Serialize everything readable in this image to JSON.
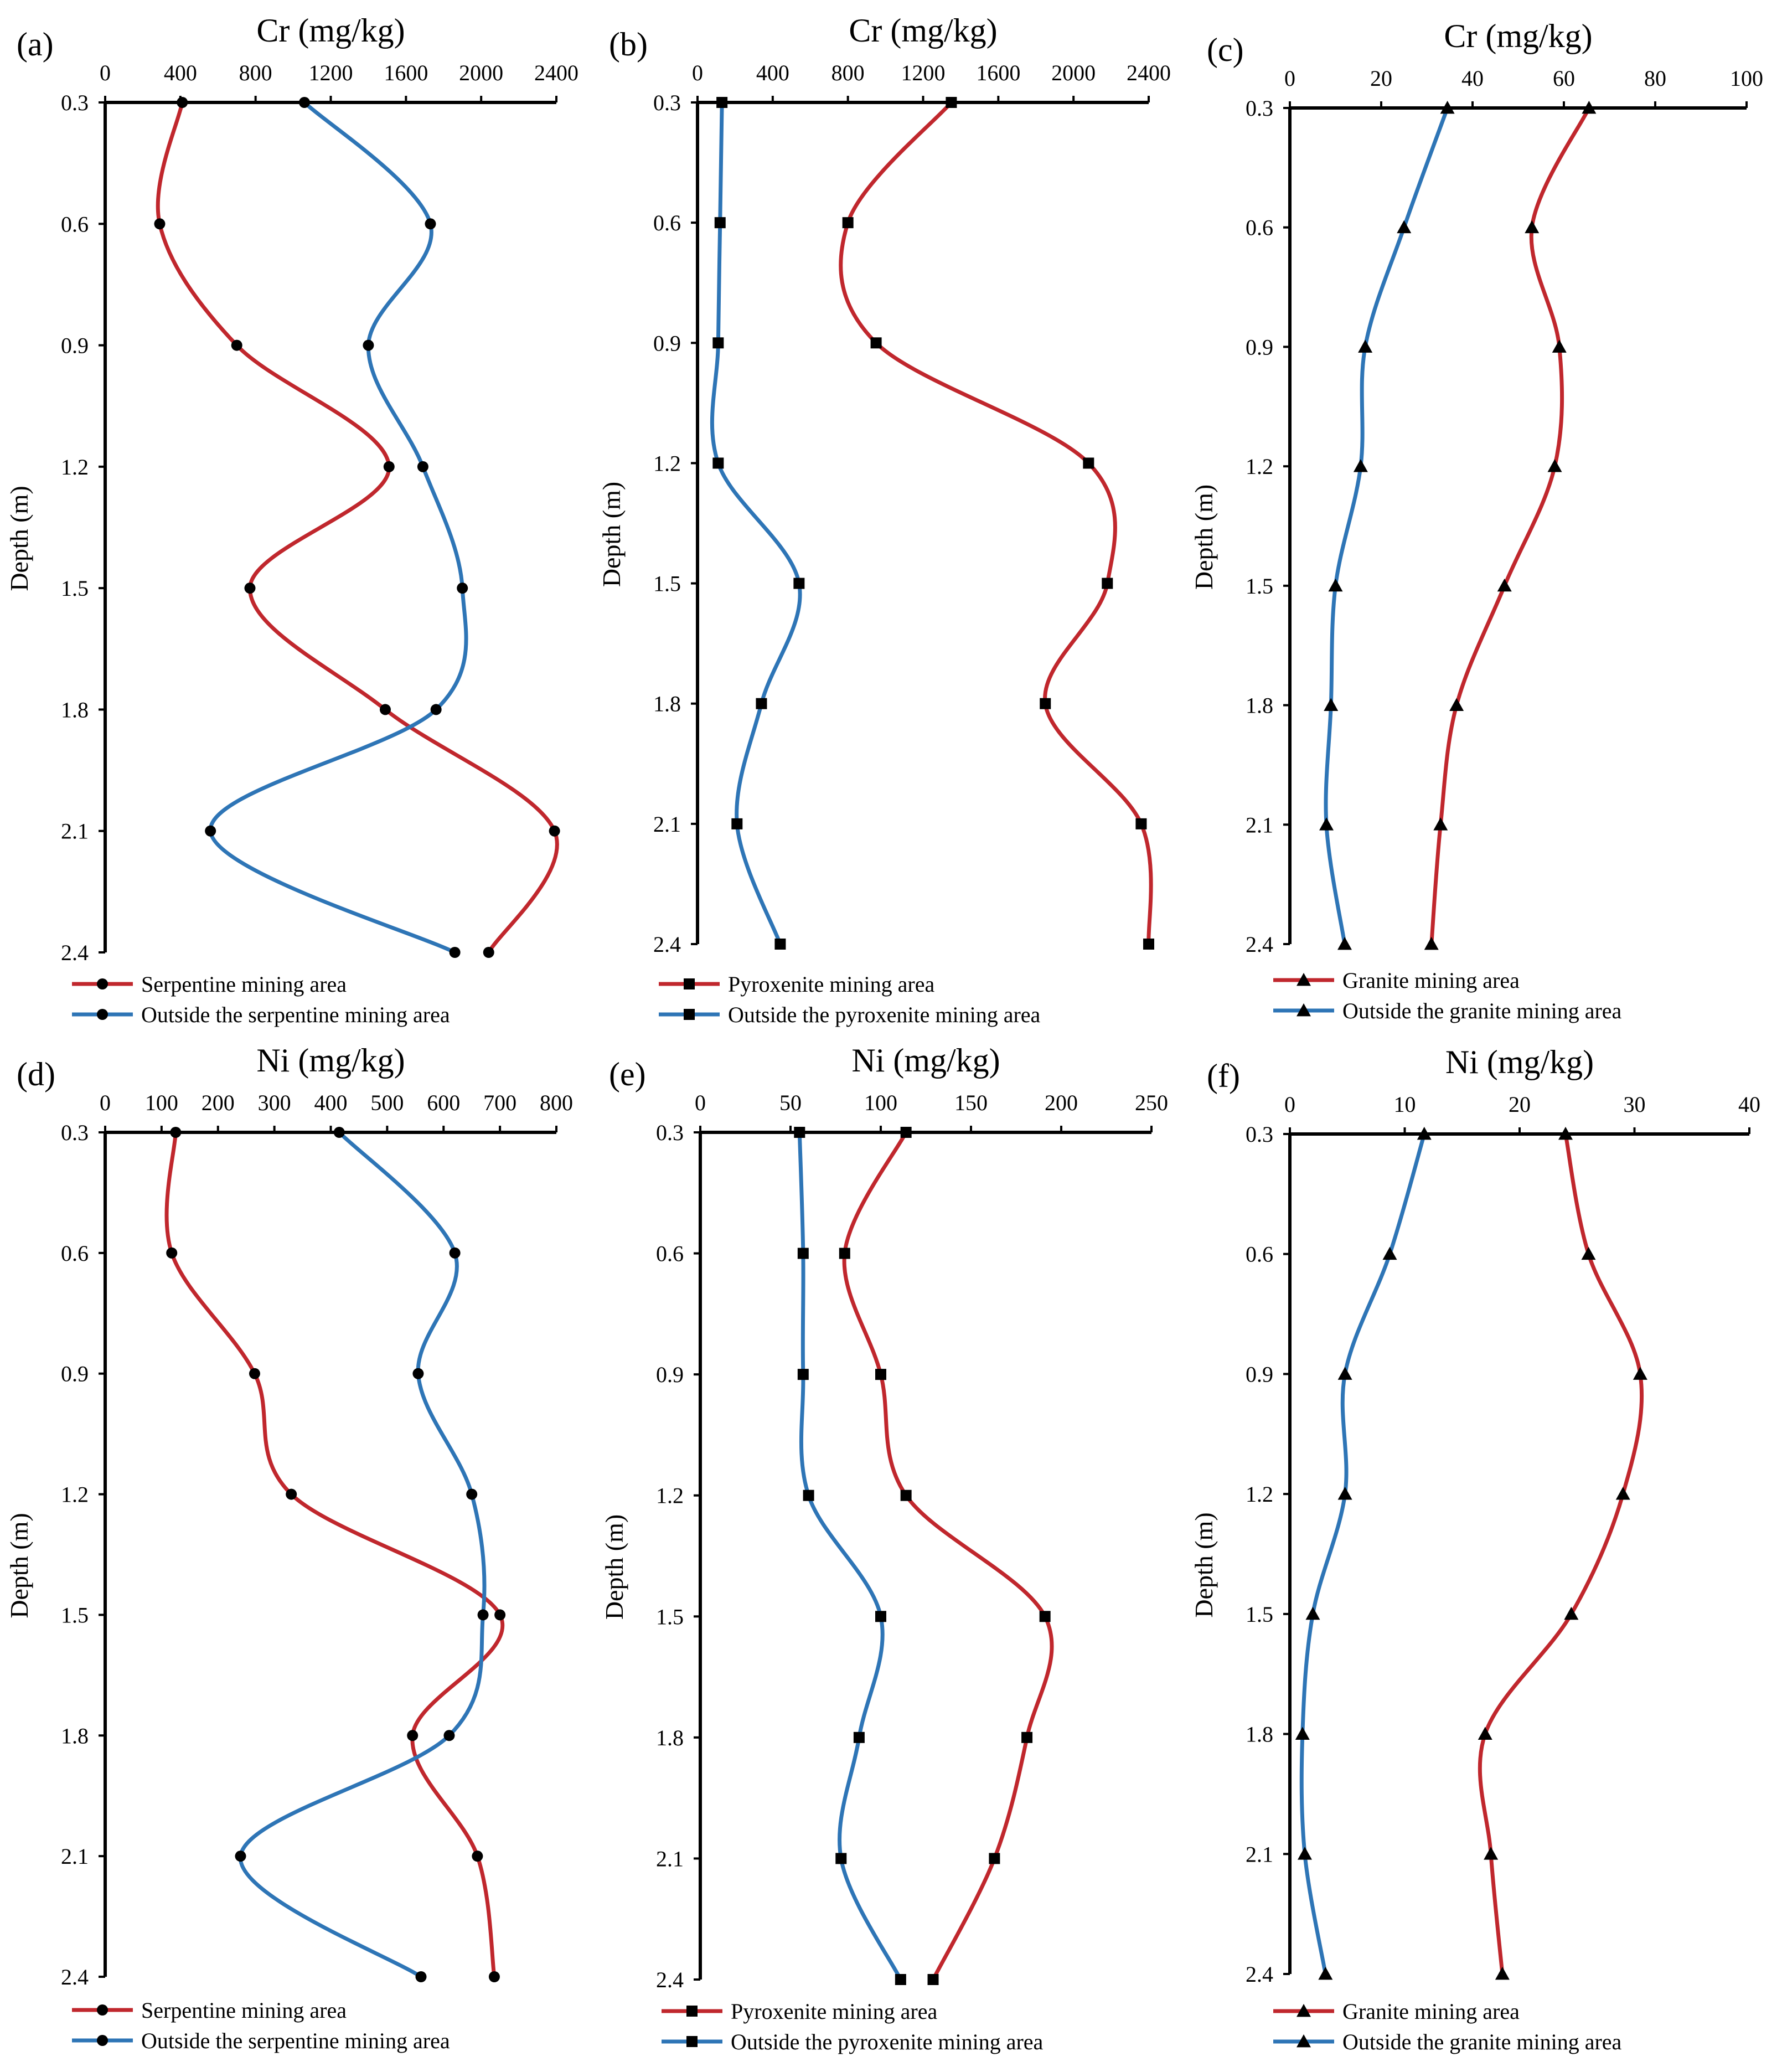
{
  "colors": {
    "red": "#C0272D",
    "blue": "#2E75B6",
    "marker": "#000000"
  },
  "chart_data": [
    {
      "type": "line",
      "panel": "(a)",
      "title": "Cr (mg/kg)",
      "xlabel": "Cr (mg/kg)",
      "ylabel": "Depth (m)",
      "xlim": [
        0,
        2400
      ],
      "xticks": [
        0,
        400,
        800,
        1200,
        1600,
        2000,
        2400
      ],
      "xtick_labels": [
        "0",
        "400",
        "800",
        "1200",
        "1600",
        "2000",
        "2400"
      ],
      "depths": [
        0.3,
        0.6,
        0.9,
        1.2,
        1.5,
        1.8,
        2.1,
        2.4
      ],
      "ytick_labels": [
        "0.3",
        "0.6",
        "0.9",
        "1.2",
        "1.5",
        "1.8",
        "2.1",
        "2.4"
      ],
      "marker": "circle",
      "series": [
        {
          "name": "Serpentine mining area",
          "color": "#C0272D",
          "values": [
            410,
            290,
            700,
            1510,
            770,
            1490,
            2390,
            2040
          ]
        },
        {
          "name": "Outside the serpentine mining area",
          "color": "#2E75B6",
          "values": [
            1060,
            1730,
            1400,
            1690,
            1900,
            1760,
            560,
            1860
          ]
        }
      ]
    },
    {
      "type": "line",
      "panel": "(b)",
      "title": "Cr (mg/kg)",
      "xlabel": "Cr (mg/kg)",
      "ylabel": "Depth (m)",
      "xlim": [
        0,
        2400
      ],
      "xticks": [
        0,
        400,
        800,
        1200,
        1600,
        2000,
        2400
      ],
      "xtick_labels": [
        "0",
        "400",
        "800",
        "1200",
        "1600",
        "2000",
        "2400"
      ],
      "depths": [
        0.3,
        0.6,
        0.9,
        1.2,
        1.5,
        1.8,
        2.1,
        2.4
      ],
      "ytick_labels": [
        "0.3",
        "0.6",
        "0.9",
        "1.2",
        "1.5",
        "1.8",
        "2.1",
        "2.4"
      ],
      "marker": "square",
      "series": [
        {
          "name": "Pyroxenite mining area",
          "color": "#C0272D",
          "values": [
            1350,
            800,
            950,
            2080,
            2180,
            1850,
            2360,
            2400
          ]
        },
        {
          "name": "Outside the pyroxenite mining area",
          "color": "#2E75B6",
          "values": [
            130,
            120,
            110,
            110,
            540,
            340,
            210,
            440
          ]
        }
      ]
    },
    {
      "type": "line",
      "panel": "(c)",
      "title": "Cr (mg/kg)",
      "xlabel": "Cr (mg/kg)",
      "ylabel": "Depth (m)",
      "xlim": [
        0,
        100
      ],
      "xticks": [
        0,
        20,
        40,
        60,
        80,
        100
      ],
      "xtick_labels": [
        "0",
        "20",
        "40",
        "60",
        "80",
        "100"
      ],
      "depths": [
        0.3,
        0.6,
        0.9,
        1.2,
        1.5,
        1.8,
        2.1,
        2.4
      ],
      "ytick_labels": [
        "0.3",
        "0.6",
        "0.9",
        "1.2",
        "1.5",
        "1.8",
        "2.1",
        "2.4"
      ],
      "marker": "triangle",
      "series": [
        {
          "name": "Granite mining area",
          "color": "#C0272D",
          "values": [
            65.5,
            53,
            59,
            58,
            47,
            36.5,
            33,
            31
          ]
        },
        {
          "name": "Outside the granite mining area",
          "color": "#2E75B6",
          "values": [
            34.5,
            25,
            16.5,
            15.5,
            10,
            9,
            8,
            12
          ]
        }
      ]
    },
    {
      "type": "line",
      "panel": "(d)",
      "title": "Ni (mg/kg)",
      "xlabel": "Ni (mg/kg)",
      "ylabel": "Depth (m)",
      "xlim": [
        0,
        800
      ],
      "xticks": [
        0,
        100,
        200,
        300,
        400,
        500,
        600,
        700,
        800
      ],
      "xtick_labels": [
        "0",
        "100",
        "200",
        "300",
        "400",
        "500",
        "600",
        "700",
        "800"
      ],
      "depths": [
        0.3,
        0.6,
        0.9,
        1.2,
        1.5,
        1.8,
        2.1,
        2.4
      ],
      "ytick_labels": [
        "0.3",
        "0.6",
        "0.9",
        "1.2",
        "1.5",
        "1.8",
        "2.1",
        "2.4"
      ],
      "marker": "circle",
      "series": [
        {
          "name": "Serpentine mining area",
          "color": "#C0272D",
          "values": [
            125,
            118,
            265,
            330,
            700,
            545,
            660,
            690
          ]
        },
        {
          "name": "Outside the serpentine mining area",
          "color": "#2E75B6",
          "values": [
            415,
            620,
            555,
            650,
            670,
            610,
            240,
            560
          ]
        }
      ]
    },
    {
      "type": "line",
      "panel": "(e)",
      "title": "Ni (mg/kg)",
      "xlabel": "Ni (mg/kg)",
      "ylabel": "Depth (m)",
      "xlim": [
        0,
        250
      ],
      "xticks": [
        0,
        50,
        100,
        150,
        200,
        250
      ],
      "xtick_labels": [
        "0",
        "50",
        "100",
        "150",
        "200",
        "250"
      ],
      "depths": [
        0.3,
        0.6,
        0.9,
        1.2,
        1.5,
        1.8,
        2.1,
        2.4
      ],
      "ytick_labels": [
        "0.3",
        "0.6",
        "0.9",
        "1.2",
        "1.5",
        "1.8",
        "2.1",
        "2.4"
      ],
      "marker": "square",
      "series": [
        {
          "name": "Pyroxenite mining area",
          "color": "#C0272D",
          "values": [
            114,
            80,
            100,
            114,
            191,
            181,
            163,
            129
          ]
        },
        {
          "name": "Outside the pyroxenite mining area",
          "color": "#2E75B6",
          "values": [
            55,
            57,
            57,
            60,
            100,
            88,
            78,
            111
          ]
        }
      ]
    },
    {
      "type": "line",
      "panel": "(f)",
      "title": "Ni (mg/kg)",
      "xlabel": "Ni (mg/kg)",
      "ylabel": "Depth (m)",
      "xlim": [
        0,
        40
      ],
      "xticks": [
        0,
        10,
        20,
        30,
        40
      ],
      "xtick_labels": [
        "0",
        "10",
        "20",
        "30",
        "40"
      ],
      "depths": [
        0.3,
        0.6,
        0.9,
        1.2,
        1.5,
        1.8,
        2.1,
        2.4
      ],
      "ytick_labels": [
        "0.3",
        "0.6",
        "0.9",
        "1.2",
        "1.5",
        "1.8",
        "2.1",
        "2.4"
      ],
      "marker": "triangle",
      "series": [
        {
          "name": "Granite mining area",
          "color": "#C0272D",
          "values": [
            24,
            26,
            30.5,
            29,
            24.5,
            17,
            17.5,
            18.5
          ]
        },
        {
          "name": "Outside the granite mining area",
          "color": "#2E75B6",
          "values": [
            11.7,
            8.7,
            4.8,
            4.8,
            2,
            1.1,
            1.3,
            3.1
          ]
        }
      ]
    }
  ]
}
